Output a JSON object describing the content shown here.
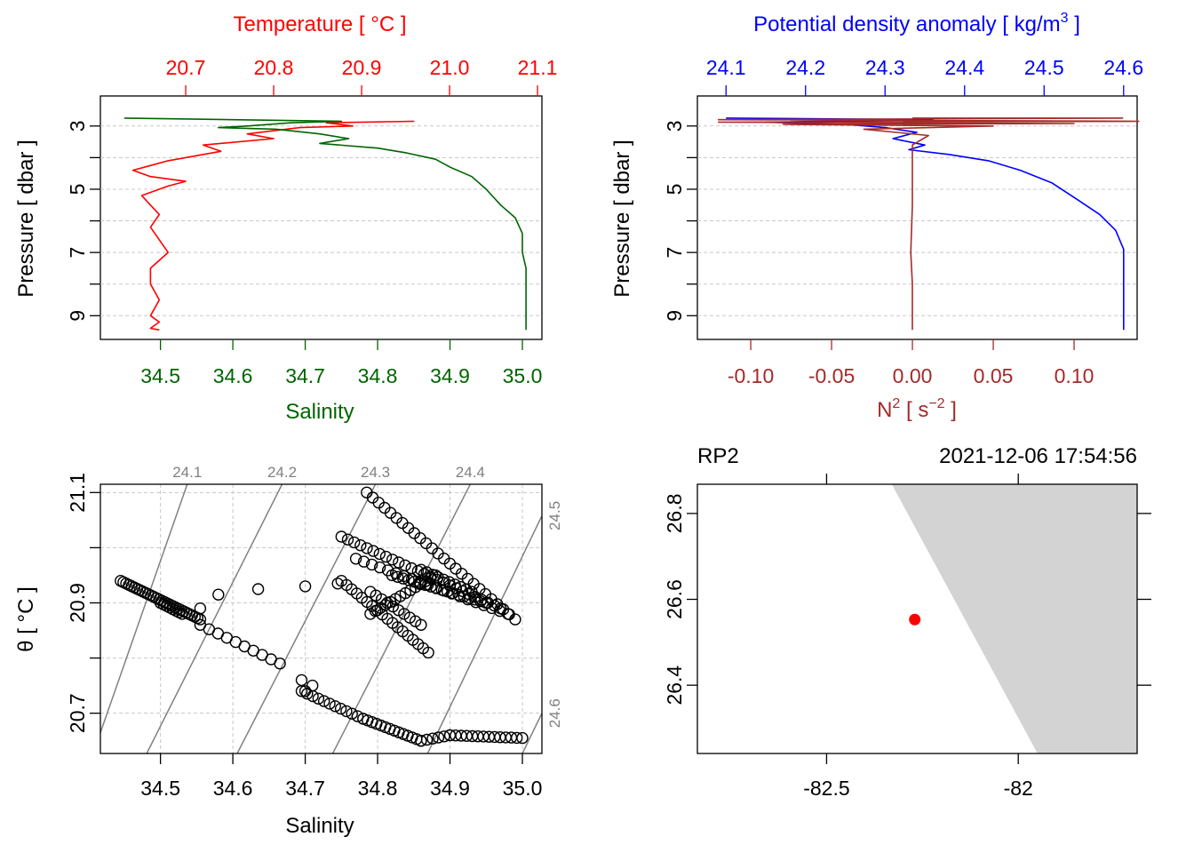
{
  "chart_data": [
    {
      "type": "line",
      "panel": "temperature-salinity-profile",
      "top_axis_label": "Temperature [ °C ]",
      "top_ticks": [
        "20.7",
        "20.8",
        "20.9",
        "21.0",
        "21.1"
      ],
      "top_tick_values": [
        20.7,
        20.8,
        20.9,
        21.0,
        21.1
      ],
      "xlim_top": [
        20.603,
        21.105
      ],
      "bottom_axis_label": "Salinity",
      "bottom_ticks": [
        "34.5",
        "34.6",
        "34.7",
        "34.8",
        "34.9",
        "35.0"
      ],
      "bottom_tick_values": [
        34.5,
        34.6,
        34.7,
        34.8,
        34.9,
        35.0
      ],
      "xlim_bottom": [
        34.417,
        35.027
      ],
      "ylabel": "Pressure [ dbar ]",
      "y_ticks": [
        "3",
        "5",
        "7",
        "9"
      ],
      "y_tick_values": [
        3,
        5,
        7,
        9
      ],
      "ylim": [
        9.75,
        2.05
      ],
      "colors": {
        "temperature": "#ff0000",
        "salinity": "#006400"
      },
      "series": [
        {
          "name": "Temperature",
          "axis": "top",
          "color": "#ff0000",
          "x": [
            20.96,
            20.86,
            20.89,
            20.83,
            20.77,
            20.8,
            20.72,
            20.74,
            20.68,
            20.66,
            20.64,
            20.66,
            20.7,
            20.68,
            20.65,
            20.66,
            20.67,
            20.66,
            20.67,
            20.68,
            20.66,
            20.66,
            20.67,
            20.66,
            20.67,
            20.66,
            20.67
          ],
          "y": [
            2.85,
            2.9,
            3.0,
            3.05,
            3.25,
            3.4,
            3.6,
            3.8,
            4.1,
            4.25,
            4.4,
            4.6,
            4.75,
            4.9,
            5.2,
            5.5,
            5.8,
            6.2,
            6.6,
            7.0,
            7.5,
            8.0,
            8.5,
            9.0,
            9.2,
            9.4,
            9.45
          ]
        },
        {
          "name": "Salinity",
          "axis": "bottom",
          "color": "#006400",
          "x": [
            34.45,
            34.6,
            34.75,
            34.68,
            34.62,
            34.58,
            34.66,
            34.72,
            34.76,
            34.72,
            34.8,
            34.84,
            34.88,
            34.9,
            34.93,
            34.95,
            34.97,
            34.99,
            35.0,
            35.0,
            35.005,
            35.005,
            35.005,
            35.005,
            35.005
          ],
          "y": [
            2.75,
            2.8,
            2.85,
            2.9,
            3.0,
            3.05,
            3.1,
            3.25,
            3.4,
            3.55,
            3.7,
            3.85,
            4.05,
            4.3,
            4.6,
            5.0,
            5.5,
            5.9,
            6.4,
            7.0,
            7.5,
            8.0,
            8.5,
            9.0,
            9.45
          ]
        }
      ]
    },
    {
      "type": "line",
      "panel": "density-n2-profile",
      "top_axis_label": "Potential density anomaly [ kg/m",
      "top_axis_label_sup": "3",
      "top_axis_label_end": " ]",
      "top_ticks": [
        "24.1",
        "24.2",
        "24.3",
        "24.4",
        "24.5",
        "24.6"
      ],
      "top_tick_values": [
        24.1,
        24.2,
        24.3,
        24.4,
        24.5,
        24.6
      ],
      "xlim_top": [
        24.064,
        24.617
      ],
      "bottom_axis_label": "N",
      "bottom_axis_label_sup": "2",
      "bottom_axis_label_mid": " [ s",
      "bottom_axis_label_sup2": "−2",
      "bottom_axis_label_end": " ]",
      "bottom_ticks": [
        "-0.10",
        "-0.05",
        "0.00",
        "0.05",
        "0.10"
      ],
      "bottom_tick_values": [
        -0.1,
        -0.05,
        0.0,
        0.05,
        0.1
      ],
      "xlim_bottom": [
        -0.133,
        0.139
      ],
      "ylabel": "Pressure [ dbar ]",
      "y_ticks": [
        "3",
        "5",
        "7",
        "9"
      ],
      "y_tick_values": [
        3,
        5,
        7,
        9
      ],
      "ylim": [
        9.75,
        2.05
      ],
      "colors": {
        "density": "#0000ff",
        "n2": "#a52a2a"
      },
      "series": [
        {
          "name": "Potential density anomaly",
          "axis": "top",
          "color": "#0000ff",
          "x": [
            24.1,
            24.36,
            24.15,
            24.25,
            24.3,
            24.34,
            24.31,
            24.35,
            24.33,
            24.38,
            24.43,
            24.47,
            24.51,
            24.54,
            24.57,
            24.59,
            24.6,
            24.6,
            24.6,
            24.6,
            24.6
          ],
          "y": [
            2.75,
            2.8,
            2.88,
            2.95,
            3.05,
            3.2,
            3.4,
            3.6,
            3.75,
            3.9,
            4.1,
            4.4,
            4.8,
            5.3,
            5.8,
            6.3,
            6.9,
            7.5,
            8.2,
            8.8,
            9.45
          ]
        },
        {
          "name": "N2",
          "axis": "bottom",
          "color": "#a52a2a",
          "x": [
            0.0,
            0.13,
            -0.12,
            0.14,
            -0.12,
            0.1,
            -0.08,
            0.05,
            -0.03,
            0.01,
            0.0,
            0.0,
            0.0,
            -0.001,
            0.0,
            0.0,
            0.0
          ],
          "y": [
            2.75,
            2.75,
            2.8,
            2.85,
            2.88,
            2.92,
            2.95,
            3.0,
            3.1,
            3.3,
            3.6,
            4.2,
            5.5,
            7.0,
            8.0,
            9.0,
            9.45
          ]
        }
      ]
    },
    {
      "type": "scatter",
      "panel": "theta-s-diagram",
      "xlabel": "Salinity",
      "ylabel": "θ [ °C ]",
      "x_ticks": [
        "34.5",
        "34.6",
        "34.7",
        "34.8",
        "34.9",
        "35.0"
      ],
      "x_tick_values": [
        34.5,
        34.6,
        34.7,
        34.8,
        34.9,
        35.0
      ],
      "y_ticks": [
        "20.7",
        "20.9",
        "21.1"
      ],
      "y_tick_values": [
        20.7,
        20.9,
        21.1
      ],
      "y_grid_values": [
        20.7,
        20.8,
        20.9,
        21.0,
        21.1
      ],
      "xlim": [
        34.417,
        35.027
      ],
      "ylim": [
        20.627,
        21.115
      ],
      "isopycnal_labels": [
        "24.1",
        "24.2",
        "24.3",
        "24.4",
        "24.5",
        "24.6"
      ],
      "isopycnal_lines": [
        {
          "s0": 34.412,
          "t0": 20.646,
          "s1": 34.537,
          "t1": 21.115
        },
        {
          "s0": 34.481,
          "t0": 20.627,
          "s1": 34.668,
          "t1": 21.115
        },
        {
          "s0": 34.606,
          "t0": 20.627,
          "s1": 34.797,
          "t1": 21.115
        },
        {
          "s0": 34.738,
          "t0": 20.627,
          "s1": 34.928,
          "t1": 21.115
        },
        {
          "s0": 34.869,
          "t0": 20.627,
          "s1": 35.027,
          "t1": 21.058
        },
        {
          "s0": 35.0,
          "t0": 20.627,
          "s1": 35.027,
          "t1": 20.7
        }
      ],
      "marker_color": "#000000",
      "segments": [
        {
          "s0": 34.445,
          "t0": 20.94,
          "s1": 34.555,
          "t1": 20.87,
          "n": 30
        },
        {
          "s0": 34.5,
          "t0": 20.9,
          "s1": 34.53,
          "t1": 20.88,
          "n": 8
        },
        {
          "s0": 34.555,
          "t0": 20.86,
          "s1": 34.665,
          "t1": 20.79,
          "n": 10
        },
        {
          "s0": 34.695,
          "t0": 20.74,
          "s1": 34.78,
          "t1": 20.69,
          "n": 12
        },
        {
          "s0": 34.78,
          "t0": 20.69,
          "s1": 34.86,
          "t1": 20.65,
          "n": 14
        },
        {
          "s0": 34.86,
          "t0": 20.65,
          "s1": 34.9,
          "t1": 20.66,
          "n": 6
        },
        {
          "s0": 34.9,
          "t0": 20.66,
          "s1": 35.0,
          "t1": 20.655,
          "n": 14
        },
        {
          "s0": 34.785,
          "t0": 21.1,
          "s1": 34.99,
          "t1": 20.87,
          "n": 26
        },
        {
          "s0": 34.75,
          "t0": 21.02,
          "s1": 34.97,
          "t1": 20.89,
          "n": 26
        },
        {
          "s0": 34.77,
          "t0": 20.98,
          "s1": 34.98,
          "t1": 20.88,
          "n": 20
        },
        {
          "s0": 34.75,
          "t0": 20.94,
          "s1": 34.87,
          "t1": 20.81,
          "n": 18
        },
        {
          "s0": 34.79,
          "t0": 20.92,
          "s1": 34.86,
          "t1": 20.86,
          "n": 10
        },
        {
          "s0": 34.79,
          "t0": 20.88,
          "s1": 34.88,
          "t1": 20.95,
          "n": 14
        },
        {
          "s0": 34.82,
          "t0": 20.95,
          "s1": 34.95,
          "t1": 20.9,
          "n": 18
        },
        {
          "s0": 34.86,
          "t0": 20.96,
          "s1": 34.93,
          "t1": 20.92,
          "n": 10
        }
      ],
      "points": [
        {
          "s": 34.58,
          "t": 20.915
        },
        {
          "s": 34.635,
          "t": 20.925
        },
        {
          "s": 34.7,
          "t": 20.93
        },
        {
          "s": 34.745,
          "t": 20.935
        },
        {
          "s": 34.555,
          "t": 20.89
        },
        {
          "s": 34.695,
          "t": 20.76
        },
        {
          "s": 34.7,
          "t": 20.74
        },
        {
          "s": 34.71,
          "t": 20.75
        }
      ]
    },
    {
      "type": "scatter",
      "panel": "station-map",
      "station_name": "RP2",
      "datetime": "2021-12-06 17:54:56",
      "x_ticks": [
        "-82.5",
        "-82"
      ],
      "x_tick_values": [
        -82.5,
        -82
      ],
      "y_ticks": [
        "26.4",
        "26.6",
        "26.8"
      ],
      "y_tick_values": [
        26.4,
        26.6,
        26.8
      ],
      "xlim": [
        -82.837,
        -81.69
      ],
      "ylim": [
        26.241,
        26.868
      ],
      "station": {
        "lon": -82.27,
        "lat": 26.553
      },
      "land_polygon": [
        {
          "lon": -82.33,
          "lat": 26.868
        },
        {
          "lon": -81.69,
          "lat": 26.868
        },
        {
          "lon": -81.69,
          "lat": 26.241
        },
        {
          "lon": -81.95,
          "lat": 26.241
        }
      ],
      "colors": {
        "station": "#ff0000",
        "land": "#d3d3d3"
      }
    }
  ]
}
